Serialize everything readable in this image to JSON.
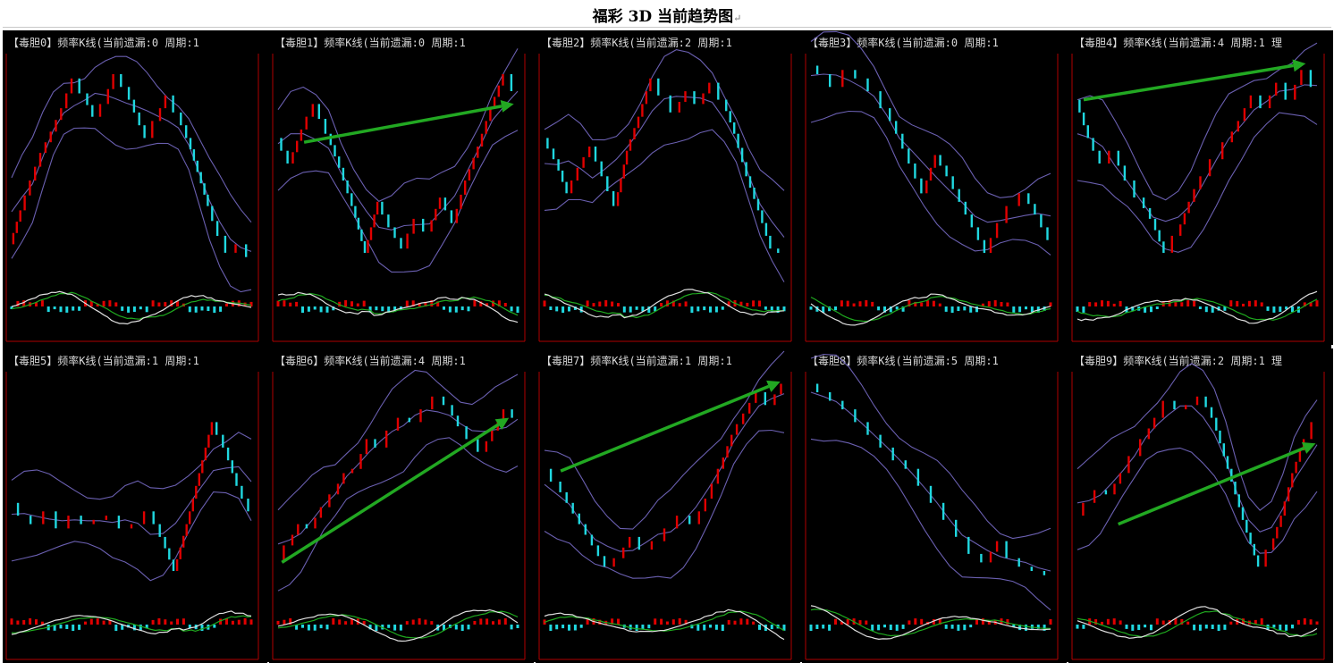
{
  "page": {
    "title": "福彩 3D 当前趋势图",
    "return_mark": "↵"
  },
  "colors": {
    "background": "#000000",
    "axis_frame": "#b00000",
    "bar_up": "#e00000",
    "bar_down": "#20d8e0",
    "bollinger": "#6a5fb0",
    "oscillator_fast": "#e0e0e0",
    "oscillator_slow": "#1faa1f",
    "trend_arrow": "#22a822"
  },
  "panels": [
    {
      "label": "【毒胆0】频率K线(当前遗漏:0 周期:1"
    },
    {
      "label": "【毒胆1】频率K线(当前遗漏:0 周期:1"
    },
    {
      "label": "【毒胆2】频率K线(当前遗漏:2 周期:1"
    },
    {
      "label": "【毒胆3】频率K线(当前遗漏:0 周期:1"
    },
    {
      "label": "【毒胆4】频率K线(当前遗漏:4 周期:1 理"
    },
    {
      "label": "【毒胆5】频率K线(当前遗漏:1 周期:1"
    },
    {
      "label": "【毒胆6】频率K线(当前遗漏:4 周期:1"
    },
    {
      "label": "【毒胆7】频率K线(当前遗漏:1 周期:1"
    },
    {
      "label": "【毒胆8】频率K线(当前遗漏:5 周期:1"
    },
    {
      "label": "【毒胆9】频率K线(当前遗漏:2 周期:1 理"
    }
  ],
  "chart_data": [
    {
      "type": "line",
      "series": [
        {
          "values": [
            12,
            28,
            42,
            55,
            65,
            76,
            90,
            83,
            72,
            78,
            92,
            86,
            74,
            62,
            70,
            82,
            74,
            62,
            46,
            30,
            16,
            8,
            12,
            6
          ]
        }
      ],
      "arrow": null
    },
    {
      "type": "line",
      "series": [
        {
          "values": [
            62,
            50,
            66,
            78,
            64,
            48,
            30,
            8,
            32,
            20,
            10,
            24,
            18,
            34,
            22,
            42,
            58,
            76,
            92,
            84
          ]
        }
      ],
      "arrow": [
        [
          0.12,
          0.6
        ],
        [
          0.97,
          0.78
        ]
      ]
    },
    {
      "type": "line",
      "series": [
        {
          "values": [
            62,
            52,
            36,
            48,
            58,
            44,
            30,
            56,
            72,
            90,
            82,
            74,
            84,
            78,
            88,
            80,
            64,
            44,
            28,
            10,
            8
          ]
        }
      ],
      "arrow": null
    },
    {
      "type": "line",
      "series": [
        {
          "values": [
            96,
            92,
            86,
            94,
            90,
            84,
            76,
            64,
            50,
            36,
            54,
            44,
            32,
            20,
            8,
            22,
            30,
            36,
            26,
            14
          ]
        }
      ],
      "arrow": null
    },
    {
      "type": "line",
      "series": [
        {
          "values": [
            80,
            62,
            50,
            56,
            42,
            34,
            24,
            8,
            16,
            32,
            44,
            52,
            60,
            70,
            82,
            76,
            88,
            80,
            94,
            86
          ]
        }
      ],
      "arrow": [
        [
          0.04,
          0.8
        ],
        [
          0.94,
          0.97
        ]
      ]
    },
    {
      "type": "line",
      "series": [
        {
          "values": [
            40,
            34,
            30,
            36,
            28,
            34,
            30,
            32,
            34,
            28,
            30,
            36,
            24,
            8,
            30,
            54,
            78,
            66,
            48,
            36
          ]
        }
      ],
      "arrow": null
    },
    {
      "type": "line",
      "series": [
        {
          "values": [
            12,
            20,
            30,
            28,
            38,
            44,
            54,
            56,
            70,
            66,
            74,
            80,
            78,
            84,
            90,
            86,
            76,
            70,
            64,
            74,
            84,
            80
          ]
        }
      ],
      "arrow": [
        [
          0.03,
          0.12
        ],
        [
          0.95,
          0.8
        ]
      ]
    },
    {
      "type": "line",
      "series": [
        {
          "values": [
            56,
            50,
            40,
            30,
            20,
            10,
            14,
            24,
            18,
            22,
            28,
            34,
            30,
            42,
            56,
            72,
            82,
            92,
            86,
            96
          ]
        }
      ],
      "arrow": [
        [
          0.08,
          0.55
        ],
        [
          0.97,
          0.97
        ]
      ]
    },
    {
      "type": "line",
      "series": [
        {
          "values": [
            96,
            92,
            88,
            84,
            78,
            72,
            66,
            60,
            56,
            48,
            40,
            32,
            24,
            16,
            12,
            22,
            14,
            10,
            8,
            6
          ]
        }
      ],
      "arrow": null
    },
    {
      "type": "line",
      "series": [
        {
          "values": [
            34,
            40,
            46,
            44,
            54,
            62,
            70,
            80,
            88,
            84,
            86,
            90,
            80,
            62,
            44,
            26,
            10,
            18,
            34,
            54,
            70,
            78
          ]
        }
      ],
      "arrow": [
        [
          0.18,
          0.3
        ],
        [
          0.98,
          0.68
        ]
      ]
    }
  ]
}
